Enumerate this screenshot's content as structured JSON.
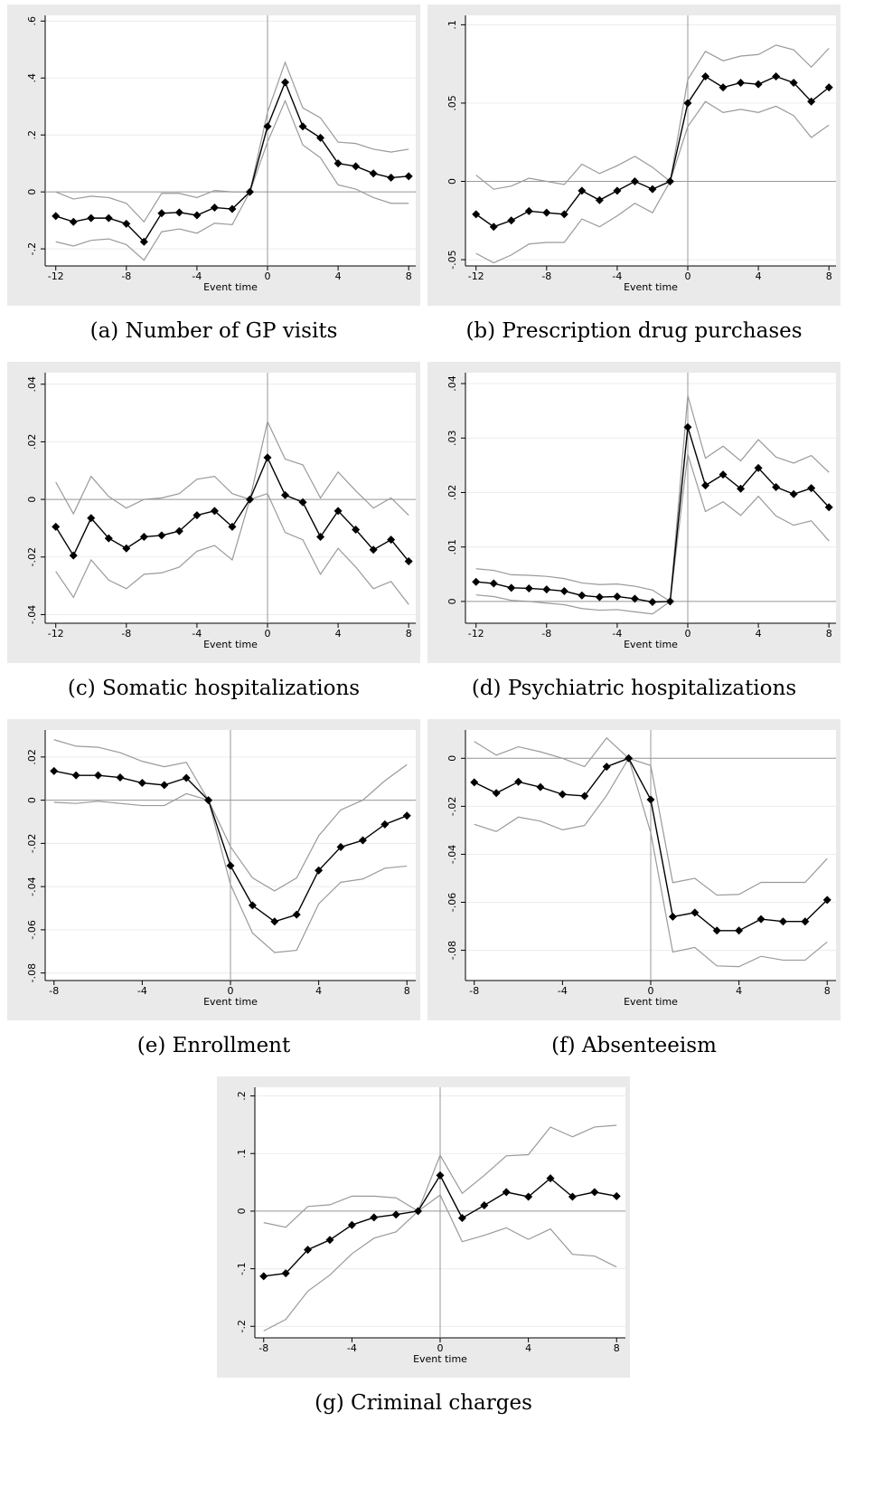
{
  "chart_data": [
    {
      "type": "line",
      "caption": "(a) Number of GP visits",
      "xlabel": "Event time",
      "grid": true,
      "xline": 0,
      "yline": 0,
      "x": [
        -12,
        -11,
        -10,
        -9,
        -8,
        -7,
        -6,
        -5,
        -4,
        -3,
        -2,
        -1,
        0,
        1,
        2,
        3,
        4,
        5,
        6,
        7,
        8
      ],
      "xlim": [
        -12.6,
        8.4
      ],
      "xticks": [
        -12,
        -8,
        -4,
        0,
        4,
        8
      ],
      "ylim": [
        -0.26,
        0.62
      ],
      "yticks": [
        {
          "value": -0.2,
          "label": "-.2"
        },
        0,
        {
          "value": 0.2,
          "label": ".2"
        },
        {
          "value": 0.4,
          "label": ".4"
        },
        {
          "value": 0.6,
          "label": ".6"
        }
      ],
      "series": [
        {
          "color": "#9a9a9a",
          "values": [
            0.0,
            -0.025,
            -0.015,
            -0.02,
            -0.04,
            -0.105,
            -0.005,
            -0.005,
            -0.02,
            0.005,
            0.0,
            0,
            0.28,
            0.455,
            0.295,
            0.26,
            0.175,
            0.17,
            0.15,
            0.14,
            0.15
          ]
        },
        {
          "color": "#9a9a9a",
          "values": [
            -0.175,
            -0.19,
            -0.17,
            -0.165,
            -0.185,
            -0.24,
            -0.14,
            -0.13,
            -0.145,
            -0.11,
            -0.115,
            0,
            0.175,
            0.32,
            0.165,
            0.12,
            0.025,
            0.01,
            -0.02,
            -0.04,
            -0.04
          ]
        },
        {
          "color": "#000000",
          "marker": "diamond",
          "values": [
            -0.085,
            -0.105,
            -0.092,
            -0.092,
            -0.112,
            -0.175,
            -0.075,
            -0.072,
            -0.082,
            -0.055,
            -0.06,
            0,
            0.23,
            0.385,
            0.23,
            0.19,
            0.1,
            0.09,
            0.065,
            0.05,
            0.055
          ]
        }
      ]
    },
    {
      "type": "line",
      "caption": "(b) Prescription drug purchases",
      "xlabel": "Event time",
      "grid": true,
      "xline": 0,
      "yline": 0,
      "x": [
        -12,
        -11,
        -10,
        -9,
        -8,
        -7,
        -6,
        -5,
        -4,
        -3,
        -2,
        -1,
        0,
        1,
        2,
        3,
        4,
        5,
        6,
        7,
        8
      ],
      "xlim": [
        -12.6,
        8.4
      ],
      "xticks": [
        -12,
        -8,
        -4,
        0,
        4,
        8
      ],
      "ylim": [
        -0.054,
        0.106
      ],
      "yticks": [
        {
          "value": -0.05,
          "label": "-.05"
        },
        0,
        {
          "value": 0.05,
          "label": ".05"
        },
        {
          "value": 0.1,
          "label": ".1"
        }
      ],
      "series": [
        {
          "color": "#9a9a9a",
          "values": [
            0.004,
            -0.005,
            -0.003,
            0.002,
            0.0,
            -0.002,
            0.011,
            0.005,
            0.01,
            0.016,
            0.009,
            0,
            0.065,
            0.083,
            0.077,
            0.08,
            0.081,
            0.087,
            0.084,
            0.073,
            0.085
          ]
        },
        {
          "color": "#9a9a9a",
          "values": [
            -0.046,
            -0.052,
            -0.047,
            -0.04,
            -0.039,
            -0.039,
            -0.024,
            -0.029,
            -0.022,
            -0.014,
            -0.02,
            0,
            0.035,
            0.051,
            0.044,
            0.046,
            0.044,
            0.048,
            0.042,
            0.028,
            0.036
          ]
        },
        {
          "color": "#000000",
          "marker": "diamond",
          "values": [
            -0.021,
            -0.029,
            -0.025,
            -0.019,
            -0.02,
            -0.021,
            -0.006,
            -0.012,
            -0.006,
            0.0,
            -0.005,
            0,
            0.05,
            0.067,
            0.06,
            0.063,
            0.062,
            0.067,
            0.063,
            0.051,
            0.06
          ]
        }
      ]
    },
    {
      "type": "line",
      "caption": "(c) Somatic hospitalizations",
      "xlabel": "Event time",
      "grid": true,
      "xline": 0,
      "yline": 0,
      "x": [
        -12,
        -11,
        -10,
        -9,
        -8,
        -7,
        -6,
        -5,
        -4,
        -3,
        -2,
        -1,
        0,
        1,
        2,
        3,
        4,
        5,
        6,
        7,
        8
      ],
      "xlim": [
        -12.6,
        8.4
      ],
      "xticks": [
        -12,
        -8,
        -4,
        0,
        4,
        8
      ],
      "ylim": [
        -0.043,
        0.044
      ],
      "yticks": [
        {
          "value": -0.04,
          "label": "-.04"
        },
        {
          "value": -0.02,
          "label": "-.02"
        },
        0,
        {
          "value": 0.02,
          "label": ".02"
        },
        {
          "value": 0.04,
          "label": ".04"
        }
      ],
      "series": [
        {
          "color": "#9a9a9a",
          "values": [
            0.006,
            -0.005,
            0.008,
            0.001,
            -0.003,
            0.0,
            0.0005,
            0.002,
            0.007,
            0.008,
            0.002,
            0,
            0.027,
            0.014,
            0.012,
            0.0005,
            0.0095,
            0.003,
            -0.003,
            0.0005,
            -0.0055
          ]
        },
        {
          "color": "#9a9a9a",
          "values": [
            -0.025,
            -0.034,
            -0.021,
            -0.028,
            -0.031,
            -0.026,
            -0.0255,
            -0.0235,
            -0.018,
            -0.016,
            -0.021,
            0,
            0.002,
            -0.0115,
            -0.014,
            -0.026,
            -0.017,
            -0.0235,
            -0.031,
            -0.0285,
            -0.0365
          ]
        },
        {
          "color": "#000000",
          "marker": "diamond",
          "values": [
            -0.0095,
            -0.0195,
            -0.0065,
            -0.0135,
            -0.017,
            -0.013,
            -0.0125,
            -0.011,
            -0.0055,
            -0.004,
            -0.0095,
            0,
            0.0145,
            0.0015,
            -0.001,
            -0.013,
            -0.004,
            -0.0105,
            -0.0175,
            -0.014,
            -0.0215
          ]
        }
      ]
    },
    {
      "type": "line",
      "caption": "(d) Psychiatric hospitalizations",
      "xlabel": "Event time",
      "grid": true,
      "xline": 0,
      "yline": 0,
      "x": [
        -12,
        -11,
        -10,
        -9,
        -8,
        -7,
        -6,
        -5,
        -4,
        -3,
        -2,
        -1,
        0,
        1,
        2,
        3,
        4,
        5,
        6,
        7,
        8
      ],
      "xlim": [
        -12.6,
        8.4
      ],
      "xticks": [
        -12,
        -8,
        -4,
        0,
        4,
        8
      ],
      "ylim": [
        -0.004,
        0.042
      ],
      "yticks": [
        0,
        {
          "value": 0.01,
          "label": ".01"
        },
        {
          "value": 0.02,
          "label": ".02"
        },
        {
          "value": 0.03,
          "label": ".03"
        },
        {
          "value": 0.04,
          "label": ".04"
        }
      ],
      "series": [
        {
          "color": "#9a9a9a",
          "values": [
            0.006,
            0.0057,
            0.0049,
            0.0048,
            0.0046,
            0.0042,
            0.0034,
            0.0031,
            0.0032,
            0.0028,
            0.0021,
            0,
            0.0378,
            0.0263,
            0.0285,
            0.0258,
            0.0297,
            0.0265,
            0.0254,
            0.0268,
            0.0237
          ]
        },
        {
          "color": "#9a9a9a",
          "values": [
            0.0012,
            0.0009,
            0.0002,
            0.0,
            -0.0003,
            -0.0006,
            -0.0013,
            -0.0016,
            -0.0015,
            -0.0019,
            -0.0023,
            0,
            0.027,
            0.0165,
            0.0183,
            0.0158,
            0.0193,
            0.0157,
            0.014,
            0.0148,
            0.0111
          ]
        },
        {
          "color": "#000000",
          "marker": "diamond",
          "values": [
            0.0036,
            0.0033,
            0.0025,
            0.0024,
            0.0022,
            0.0019,
            0.0011,
            0.0008,
            0.0009,
            0.0005,
            -0.0001,
            0,
            0.032,
            0.0213,
            0.0233,
            0.0207,
            0.0245,
            0.021,
            0.0197,
            0.0208,
            0.0173
          ]
        }
      ]
    },
    {
      "type": "line",
      "caption": "(e) Enrollment",
      "xlabel": "Event time",
      "grid": true,
      "xline": 0,
      "yline": 0,
      "x": [
        -8,
        -7,
        -6,
        -5,
        -4,
        -3,
        -2,
        -1,
        0,
        1,
        2,
        3,
        4,
        5,
        6,
        7,
        8
      ],
      "xlim": [
        -8.4,
        8.4
      ],
      "xticks": [
        -8,
        -4,
        0,
        4,
        8
      ],
      "ylim": [
        -0.0835,
        0.0325
      ],
      "yticks": [
        {
          "value": -0.08,
          "label": "-.08"
        },
        {
          "value": -0.06,
          "label": "-.06"
        },
        {
          "value": -0.04,
          "label": "-.04"
        },
        {
          "value": -0.02,
          "label": "-.02"
        },
        0,
        {
          "value": 0.02,
          "label": ".02"
        }
      ],
      "series": [
        {
          "color": "#9a9a9a",
          "values": [
            0.028,
            0.025,
            0.0245,
            0.022,
            0.018,
            0.0155,
            0.0175,
            0,
            -0.0215,
            -0.036,
            -0.042,
            -0.036,
            -0.0165,
            -0.0045,
            0.0,
            0.009,
            0.0165
          ]
        },
        {
          "color": "#9a9a9a",
          "values": [
            -0.001,
            -0.0015,
            -0.0005,
            -0.0015,
            -0.0025,
            -0.0025,
            0.003,
            0,
            -0.039,
            -0.0615,
            -0.0705,
            -0.0695,
            -0.048,
            -0.038,
            -0.0365,
            -0.0315,
            -0.0305
          ]
        },
        {
          "color": "#000000",
          "marker": "diamond",
          "values": [
            0.0135,
            0.0115,
            0.0115,
            0.0105,
            0.008,
            0.007,
            0.0103,
            0,
            -0.0303,
            -0.0487,
            -0.0562,
            -0.053,
            -0.0325,
            -0.0217,
            -0.0186,
            -0.0112,
            -0.0072
          ]
        }
      ]
    },
    {
      "type": "line",
      "caption": "(f) Absenteeism",
      "xlabel": "Event time",
      "grid": true,
      "xline": 0,
      "yline": 0,
      "x": [
        -8,
        -7,
        -6,
        -5,
        -4,
        -3,
        -2,
        -1,
        0,
        1,
        2,
        3,
        4,
        5,
        6,
        7,
        8
      ],
      "xlim": [
        -8.4,
        8.4
      ],
      "xticks": [
        -8,
        -4,
        0,
        4,
        8
      ],
      "ylim": [
        -0.0926,
        0.0118
      ],
      "yticks": [
        {
          "value": -0.08,
          "label": "-.08"
        },
        {
          "value": -0.06,
          "label": "-.06"
        },
        {
          "value": -0.04,
          "label": "-.04"
        },
        {
          "value": -0.02,
          "label": "-.02"
        },
        0
      ],
      "series": [
        {
          "color": "#9a9a9a",
          "values": [
            0.007,
            0.0013,
            0.0048,
            0.0027,
            0.0,
            -0.0035,
            0.0085,
            0,
            -0.003,
            -0.0518,
            -0.05,
            -0.057,
            -0.0567,
            -0.0517,
            -0.0517,
            -0.0517,
            -0.0418
          ]
        },
        {
          "color": "#9a9a9a",
          "values": [
            -0.0275,
            -0.0305,
            -0.0245,
            -0.0262,
            -0.0298,
            -0.028,
            -0.0155,
            0,
            -0.031,
            -0.0807,
            -0.0788,
            -0.0865,
            -0.0868,
            -0.0825,
            -0.0841,
            -0.0841,
            -0.0765
          ]
        },
        {
          "color": "#000000",
          "marker": "diamond",
          "values": [
            -0.01,
            -0.0145,
            -0.0098,
            -0.012,
            -0.015,
            -0.0157,
            -0.0035,
            0,
            -0.0172,
            -0.066,
            -0.0643,
            -0.0718,
            -0.0718,
            -0.067,
            -0.068,
            -0.068,
            -0.059
          ]
        }
      ]
    },
    {
      "type": "line",
      "caption": "(g) Criminal charges",
      "xlabel": "Event time",
      "grid": true,
      "xline": 0,
      "yline": 0,
      "x": [
        -8,
        -7,
        -6,
        -5,
        -4,
        -3,
        -2,
        -1,
        0,
        1,
        2,
        3,
        4,
        5,
        6,
        7,
        8
      ],
      "xlim": [
        -8.4,
        8.4
      ],
      "xticks": [
        -8,
        -4,
        0,
        4,
        8
      ],
      "ylim": [
        -0.22,
        0.215
      ],
      "yticks": [
        {
          "value": -0.2,
          "label": "-.2"
        },
        {
          "value": -0.1,
          "label": "-.1"
        },
        0,
        {
          "value": 0.1,
          "label": ".1"
        },
        {
          "value": 0.2,
          "label": ".2"
        }
      ],
      "series": [
        {
          "color": "#9a9a9a",
          "values": [
            -0.02,
            -0.028,
            0.008,
            0.011,
            0.026,
            0.026,
            0.023,
            0,
            0.097,
            0.031,
            0.062,
            0.096,
            0.098,
            0.146,
            0.129,
            0.146,
            0.149
          ]
        },
        {
          "color": "#9a9a9a",
          "values": [
            -0.208,
            -0.188,
            -0.139,
            -0.111,
            -0.074,
            -0.047,
            -0.036,
            0,
            0.028,
            -0.053,
            -0.042,
            -0.029,
            -0.049,
            -0.031,
            -0.075,
            -0.078,
            -0.097
          ]
        },
        {
          "color": "#000000",
          "marker": "diamond",
          "values": [
            -0.113,
            -0.108,
            -0.067,
            -0.05,
            -0.024,
            -0.011,
            -0.006,
            0,
            0.062,
            -0.012,
            0.01,
            0.033,
            0.025,
            0.057,
            0.025,
            0.033,
            0.026
          ]
        }
      ]
    }
  ]
}
